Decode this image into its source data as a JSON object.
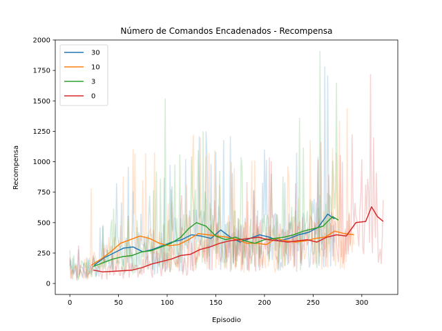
{
  "chart_data": {
    "type": "line",
    "title": "Número de Comandos Encadenados - Recompensa",
    "xlabel": "Episodio",
    "ylabel": "Recompensa",
    "xlim": [
      -15,
      337
    ],
    "ylim": [
      -90,
      2000
    ],
    "xticks": [
      0,
      50,
      100,
      150,
      200,
      250,
      300
    ],
    "yticks": [
      0,
      250,
      500,
      750,
      1000,
      1250,
      1500,
      1750,
      2000
    ],
    "legend_position": "top-left",
    "series": [
      {
        "name": "30",
        "color": "#1f77b4",
        "x": [
          25,
          35,
          45,
          55,
          65,
          75,
          85,
          95,
          105,
          115,
          125,
          135,
          145,
          155,
          165,
          175,
          185,
          195,
          205,
          215,
          225,
          235,
          245,
          255,
          265,
          272
        ],
        "y": [
          150,
          210,
          250,
          290,
          300,
          260,
          280,
          310,
          340,
          360,
          400,
          390,
          370,
          440,
          380,
          340,
          370,
          400,
          380,
          350,
          370,
          400,
          420,
          460,
          570,
          530
        ],
        "raw_peaks": [
          [
            105,
            800
          ],
          [
            140,
            1250
          ],
          [
            150,
            1080
          ],
          [
            200,
            1100
          ],
          [
            262,
            1780
          ],
          [
            255,
            1040
          ]
        ]
      },
      {
        "name": "10",
        "color": "#ff7f0e",
        "x": [
          22,
          32,
          42,
          52,
          62,
          72,
          82,
          92,
          102,
          112,
          122,
          132,
          142,
          152,
          162,
          172,
          182,
          192,
          202,
          212,
          222,
          232,
          242,
          252,
          262,
          272,
          282,
          292
        ],
        "y": [
          150,
          200,
          260,
          330,
          360,
          390,
          370,
          330,
          310,
          320,
          360,
          410,
          400,
          390,
          380,
          360,
          330,
          330,
          320,
          370,
          350,
          340,
          350,
          370,
          380,
          430,
          410,
          400
        ],
        "raw_peaks": [
          [
            22,
            780
          ],
          [
            55,
            880
          ],
          [
            134,
            1200
          ],
          [
            190,
            1010
          ],
          [
            285,
            1440
          ]
        ]
      },
      {
        "name": "3",
        "color": "#2ca02c",
        "x": [
          24,
          34,
          44,
          54,
          64,
          74,
          84,
          94,
          104,
          114,
          122,
          130,
          140,
          150,
          160,
          170,
          180,
          190,
          200,
          210,
          220,
          230,
          240,
          250,
          260,
          270,
          276
        ],
        "y": [
          140,
          170,
          200,
          220,
          230,
          260,
          270,
          300,
          330,
          380,
          450,
          500,
          470,
          390,
          360,
          380,
          350,
          330,
          360,
          370,
          380,
          400,
          430,
          450,
          470,
          550,
          520
        ],
        "raw_peaks": [
          [
            98,
            1520
          ],
          [
            137,
            1250
          ],
          [
            236,
            1360
          ],
          [
            257,
            1910
          ],
          [
            270,
            1010
          ]
        ]
      },
      {
        "name": "0",
        "color": "#d62728",
        "x": [
          24,
          34,
          44,
          54,
          64,
          74,
          84,
          94,
          104,
          114,
          124,
          134,
          144,
          154,
          164,
          174,
          184,
          194,
          204,
          214,
          224,
          234,
          244,
          254,
          264,
          274,
          284,
          294,
          304,
          310,
          316,
          322
        ],
        "y": [
          110,
          95,
          100,
          105,
          110,
          130,
          160,
          180,
          200,
          230,
          240,
          280,
          300,
          330,
          350,
          360,
          370,
          380,
          360,
          350,
          340,
          350,
          360,
          340,
          380,
          400,
          390,
          500,
          510,
          630,
          550,
          510
        ],
        "raw_peaks": [
          [
            309,
            1720
          ],
          [
            312,
            1200
          ],
          [
            280,
            1000
          ],
          [
            300,
            1020
          ],
          [
            315,
            910
          ]
        ]
      }
    ]
  }
}
